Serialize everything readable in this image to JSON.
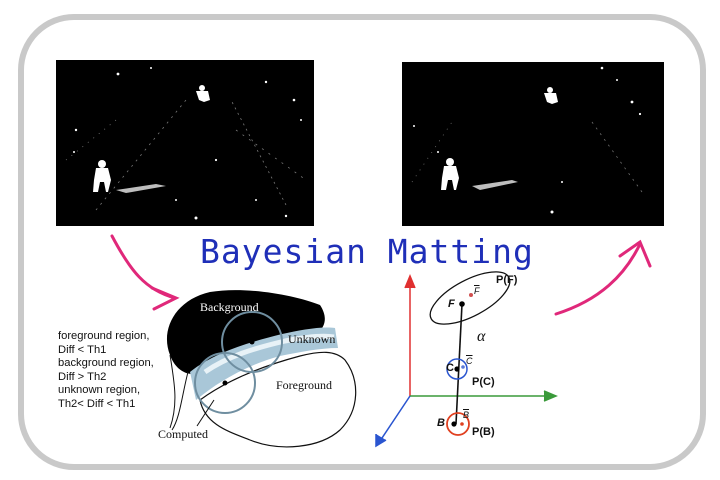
{
  "title": "Bayesian Matting",
  "legend": [
    "foreground region,",
    "Diff < Th1",
    "background region,",
    "Diff > Th2",
    "unknown region,",
    "Th2< Diff < Th1"
  ],
  "region_diagram": {
    "background_label": "Background",
    "unknown_label": "Unknown",
    "foreground_label": "Foreground",
    "computed_label": "Computed"
  },
  "color_space": {
    "pf_label": "P(F)",
    "f_label": "F",
    "fbar_label": "F",
    "alpha_label": "α",
    "c_label": "C",
    "cbar_label": "C",
    "pc_label": "P(C)",
    "b_label": "B",
    "bbar_label": "B",
    "pb_label": "P(B)"
  },
  "colors": {
    "title": "#1f2fb8",
    "arrow": "#e0287a",
    "axis_x": "#3a9a3a",
    "axis_y": "#e03030",
    "axis_z": "#2a55d0",
    "frame": "#c9c9c9"
  },
  "icons": [
    "curved-arrow-icon"
  ]
}
